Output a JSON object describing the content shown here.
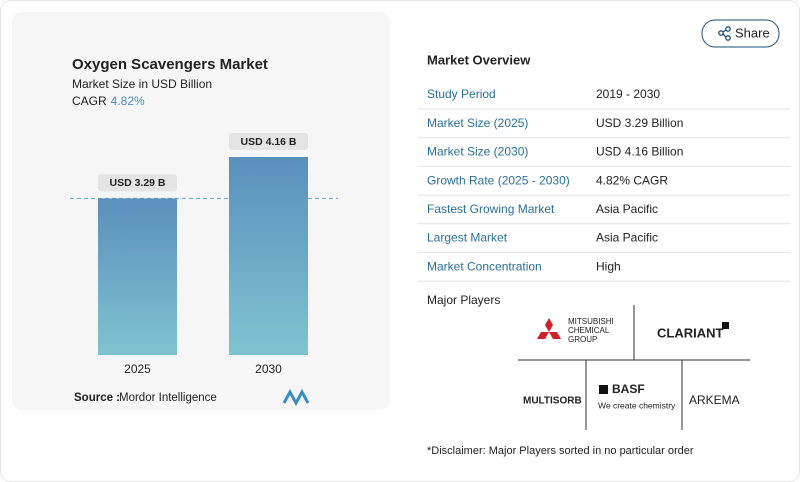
{
  "chart_data": {
    "type": "bar",
    "title": "Oxygen Scavengers Market",
    "subtitle": "Market Size in USD Billion",
    "cagr_label": "CAGR",
    "cagr_value": "4.82%",
    "categories": [
      "2025",
      "2030"
    ],
    "values": [
      3.29,
      4.16
    ],
    "value_labels": [
      "USD 3.29 B",
      "USD 4.16 B"
    ],
    "color": "#6aa6c6"
  },
  "source_label": "Source :",
  "source": "Mordor Intelligence",
  "share": "Share",
  "overview": {
    "title": "Market Overview",
    "rows": [
      [
        "Study Period",
        "2019 - 2030"
      ],
      [
        "Market Size (2025)",
        "USD 3.29 Billion"
      ],
      [
        "Market Size (2030)",
        "USD 4.16 Billion"
      ],
      [
        "Growth Rate (2025 - 2030)",
        "4.82% CAGR"
      ],
      [
        "Fastest Growing Market",
        "Asia Pacific"
      ],
      [
        "Largest Market",
        "Asia Pacific"
      ],
      [
        "Market Concentration",
        "High"
      ]
    ]
  },
  "major_players": {
    "title": "Major Players",
    "players": [
      "MITSUBISHI",
      "CHEMICAL",
      "GROUP",
      "CLARIANT",
      "MULTISORB",
      "BASF",
      "We create chemistry",
      "ARKEMA"
    ]
  },
  "disclaimer": "*Disclaimer: Major Players sorted in no particular order"
}
